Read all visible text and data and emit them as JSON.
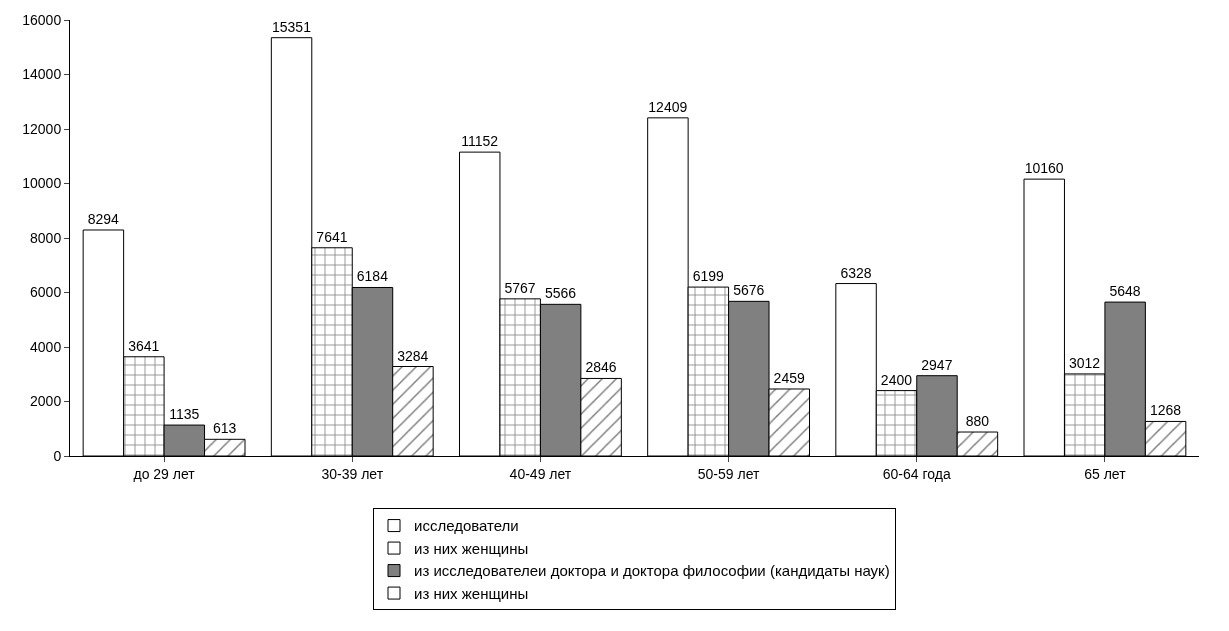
{
  "chart_data": {
    "type": "bar",
    "categories": [
      "до 29 лет",
      "30-39 лет",
      "40-49 лет",
      "50-59 лет",
      "60-64 года",
      "65 лет"
    ],
    "series": [
      {
        "name": "исследователи",
        "color": "#ffffff",
        "values": [
          8294,
          15351,
          11152,
          12409,
          6328,
          10160
        ]
      },
      {
        "name": "из них женщины",
        "color": "#ffffff",
        "values": [
          3641,
          7641,
          5767,
          6199,
          2400,
          3012
        ]
      },
      {
        "name": "из исследователеи доктора и доктора философии (кандидаты наук)",
        "color": "#808080",
        "values": [
          1135,
          6184,
          5566,
          5676,
          2947,
          5648
        ]
      },
      {
        "name": "из них женщины",
        "color": "#ffffff",
        "values": [
          613,
          3284,
          2846,
          2459,
          880,
          1268
        ]
      }
    ],
    "ylim": [
      0,
      16000
    ],
    "yticks": [
      0,
      2000,
      4000,
      6000,
      8000,
      10000,
      12000,
      14000,
      16000
    ],
    "grid": false,
    "legend": "bottom",
    "data_labels": true
  }
}
